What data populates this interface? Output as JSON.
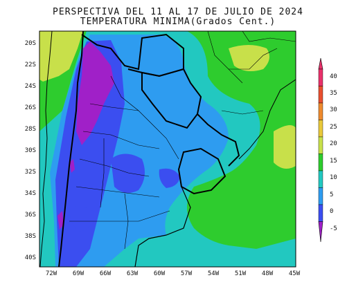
{
  "title_line1": "PERSPECTIVA DEL 11 AL 17 DE JULIO DE 2024",
  "title_line2": "TEMPERATURA MINIMA(Grados Cent.)",
  "map": {
    "lat_labels": [
      "20S",
      "22S",
      "24S",
      "26S",
      "28S",
      "30S",
      "32S",
      "34S",
      "36S",
      "38S",
      "40S"
    ],
    "lon_labels": [
      "72W",
      "69W",
      "66W",
      "63W",
      "60W",
      "57W",
      "54W",
      "51W",
      "48W",
      "45W"
    ]
  },
  "colorbar": {
    "labels": [
      "40",
      "35",
      "30",
      "25",
      "20",
      "15",
      "10",
      "5",
      "0",
      "-5"
    ],
    "colors": [
      "#e8316a",
      "#e84f2f",
      "#ee8a2e",
      "#e8c83a",
      "#c8e04a",
      "#2ecc2e",
      "#22c8c0",
      "#2e9cf0",
      "#3b4ef0",
      "#a020c8"
    ],
    "low_color": "#a020c8",
    "high_color": "#e8316a"
  }
}
